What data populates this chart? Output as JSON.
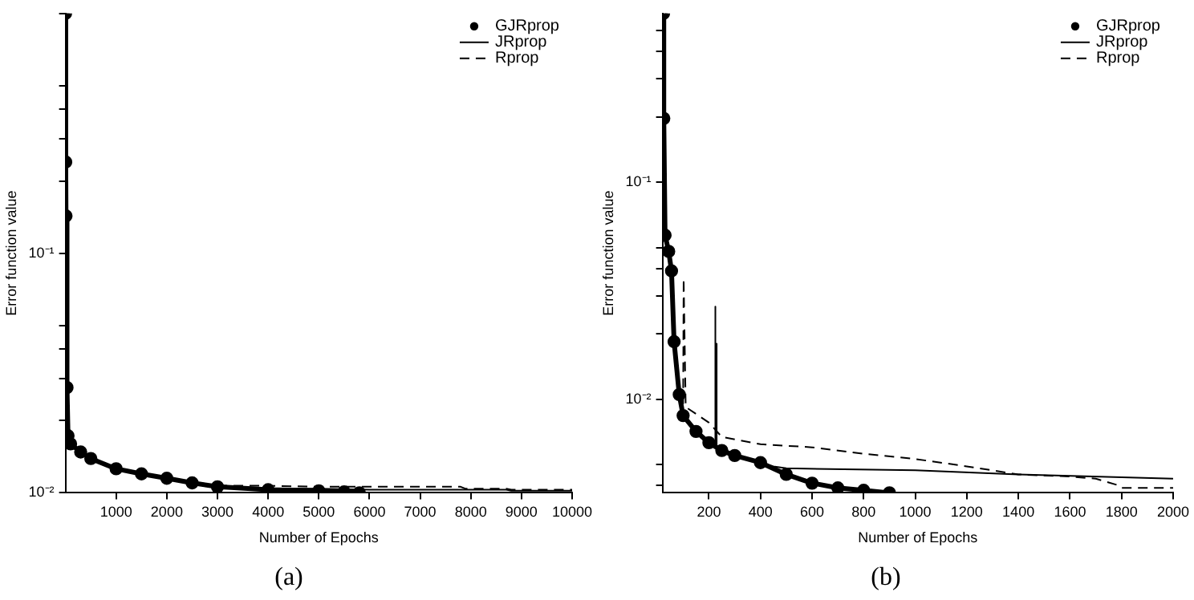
{
  "chart_data": [
    {
      "type": "line",
      "title": "(a)",
      "xlabel": "Number of Epochs",
      "ylabel": "Error function value",
      "log": "y",
      "legend": "top right",
      "grid": false,
      "xlim": [
        0,
        10000
      ],
      "xticks": [
        1000,
        2000,
        3000,
        4000,
        5000,
        6000,
        7000,
        8000,
        9000,
        10000
      ],
      "ylim": [
        0.01,
        1
      ],
      "yticks": [
        {
          "value": 0.01,
          "label": "10⁻²"
        },
        {
          "value": 0.02,
          "label": null
        },
        {
          "value": 0.03,
          "label": null
        },
        {
          "value": 0.04,
          "label": null
        },
        {
          "value": 0.05,
          "label": null
        },
        {
          "value": 0.1,
          "label": "10⁻¹"
        },
        {
          "value": 0.2,
          "label": null
        },
        {
          "value": 0.3,
          "label": null
        },
        {
          "value": 0.4,
          "label": null
        },
        {
          "value": 0.5,
          "label": null
        },
        {
          "value": 1,
          "label": null
        }
      ],
      "series": [
        {
          "name": "GJRprop",
          "color": "#000000",
          "marker": "circle",
          "x": [
            1,
            5,
            10,
            30,
            50,
            100,
            300,
            500,
            1000,
            1500,
            2000,
            2500,
            3000,
            4000,
            5000,
            5500,
            5800
          ],
          "values": [
            1,
            0.24,
            0.143,
            0.0275,
            0.0173,
            0.016,
            0.0148,
            0.0139,
            0.0126,
            0.012,
            0.0115,
            0.011,
            0.0106,
            0.0103,
            0.0102,
            0.0101,
            0.01
          ]
        },
        {
          "name": "JRprop",
          "color": "#000000",
          "marker": "none",
          "line_style": "solid",
          "x": [
            3000,
            4000,
            5000,
            6000,
            7000,
            8000,
            8700,
            8800,
            10000
          ],
          "values": [
            0.0105,
            0.0104,
            0.0104,
            0.0103,
            0.0103,
            0.0103,
            0.0103,
            0.0102,
            0.0102
          ]
        },
        {
          "name": "Rprop",
          "color": "#000000",
          "marker": "none",
          "line_style": "dashed",
          "x": [
            3000,
            4000,
            5000,
            6000,
            7000,
            7800,
            7900,
            8700,
            8800,
            10000
          ],
          "values": [
            0.0107,
            0.0107,
            0.0106,
            0.0106,
            0.0106,
            0.0106,
            0.0104,
            0.0104,
            0.0103,
            0.0103
          ]
        }
      ]
    },
    {
      "type": "line",
      "title": "(b)",
      "xlabel": "Number of Epochs",
      "ylabel": "Error function value",
      "log": "y",
      "legend": "top right",
      "grid": false,
      "xlim": [
        20,
        2000
      ],
      "xticks": [
        200,
        400,
        600,
        800,
        1000,
        1200,
        1400,
        1600,
        1800,
        2000
      ],
      "ylim": [
        0.0037,
        0.6
      ],
      "yticks": [
        {
          "value": 0.004,
          "label": null
        },
        {
          "value": 0.005,
          "label": null
        },
        {
          "value": 0.01,
          "label": "10⁻²"
        },
        {
          "value": 0.02,
          "label": null
        },
        {
          "value": 0.03,
          "label": null
        },
        {
          "value": 0.04,
          "label": null
        },
        {
          "value": 0.05,
          "label": null
        },
        {
          "value": 0.1,
          "label": "10⁻¹"
        },
        {
          "value": 0.2,
          "label": null
        },
        {
          "value": 0.3,
          "label": null
        },
        {
          "value": 0.4,
          "label": null
        },
        {
          "value": 0.5,
          "label": null
        }
      ],
      "series": [
        {
          "name": "GJRprop",
          "color": "#000000",
          "marker": "circle",
          "x": [
            24,
            25,
            30,
            44,
            55,
            65,
            85,
            100,
            150,
            200,
            250,
            300,
            400,
            500,
            600,
            700,
            800,
            900
          ],
          "values": [
            0.6,
            0.197,
            0.057,
            0.048,
            0.039,
            0.0184,
            0.0105,
            0.0084,
            0.0071,
            0.0063,
            0.0058,
            0.0055,
            0.0051,
            0.0045,
            0.0041,
            0.0039,
            0.0038,
            0.0037
          ]
        },
        {
          "name": "JRprop",
          "color": "#000000",
          "marker": "none",
          "line_style": "solid",
          "x": [
            150,
            200,
            222,
            224,
            226,
            228,
            230,
            250,
            300,
            400,
            450,
            500,
            1000,
            1400,
            2000
          ],
          "values": [
            0.0071,
            0.0063,
            0.0062,
            0.0267,
            0.006,
            0.018,
            0.006,
            0.0058,
            0.0055,
            0.0051,
            0.0049,
            0.0048,
            0.0047,
            0.0045,
            0.0043
          ]
        },
        {
          "name": "Rprop",
          "color": "#000000",
          "marker": "none",
          "line_style": "dashed",
          "x": [
            85,
            100,
            102,
            110,
            200,
            250,
            400,
            600,
            800,
            1000,
            1200,
            1400,
            1600,
            1700,
            1790,
            1800,
            2000
          ],
          "values": [
            0.0105,
            0.0092,
            0.036,
            0.0092,
            0.0078,
            0.0067,
            0.0062,
            0.006,
            0.0056,
            0.0053,
            0.0049,
            0.0045,
            0.0044,
            0.0043,
            0.004,
            0.0039,
            0.0039
          ]
        }
      ]
    }
  ]
}
